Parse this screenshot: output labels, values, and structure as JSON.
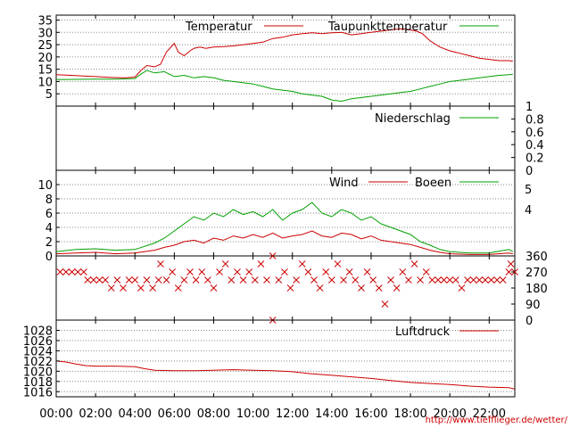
{
  "chart_data": [
    {
      "type": "line",
      "panel": "temperature",
      "ylim": [
        0,
        37
      ],
      "yticks": [
        5,
        10,
        15,
        20,
        25,
        30,
        35
      ],
      "grid": true,
      "legend_position": "top",
      "series": [
        {
          "name": "Temperatur",
          "color": "#cc0000",
          "x": [
            0,
            0.5,
            1,
            1.5,
            2,
            2.5,
            3,
            3.5,
            4,
            4.3,
            4.6,
            5,
            5.3,
            5.6,
            6,
            6.2,
            6.5,
            6.8,
            7,
            7.3,
            7.6,
            8,
            8.5,
            9,
            9.5,
            10,
            10.5,
            11,
            11.5,
            12,
            12.5,
            13,
            13.5,
            14,
            14.5,
            15,
            15.5,
            16,
            16.5,
            17,
            17.5,
            18,
            18.3,
            18.6,
            19,
            19.5,
            20,
            20.5,
            21,
            21.5,
            22,
            22.5,
            23,
            23.2
          ],
          "values": [
            12.8,
            12.6,
            12.4,
            12.2,
            12.0,
            11.8,
            11.6,
            11.5,
            11.8,
            14.5,
            16.5,
            16.0,
            17.0,
            22.0,
            25.5,
            22.0,
            20.5,
            22.5,
            23.5,
            24.0,
            23.5,
            24.0,
            24.2,
            24.5,
            25.0,
            25.5,
            26.0,
            27.5,
            28.0,
            29.0,
            29.5,
            29.8,
            29.5,
            29.8,
            30.0,
            29.0,
            29.5,
            30.0,
            30.5,
            31.0,
            31.5,
            31.0,
            30.5,
            29.5,
            26.5,
            24.0,
            22.5,
            21.5,
            20.5,
            19.5,
            19.0,
            18.5,
            18.5,
            18.3
          ]
        },
        {
          "name": "Taupunkttemperatur",
          "color": "#00a000",
          "x": [
            0,
            1,
            2,
            3,
            4,
            4.3,
            4.6,
            5,
            5.5,
            6,
            6.5,
            7,
            7.5,
            8,
            8.5,
            9,
            9.5,
            10,
            10.5,
            11,
            11.5,
            12,
            12.5,
            13,
            13.5,
            14,
            14.5,
            15,
            15.5,
            16,
            16.5,
            17,
            17.5,
            18,
            18.5,
            19,
            19.5,
            20,
            20.5,
            21,
            21.5,
            22,
            22.5,
            23,
            23.2
          ],
          "values": [
            10.8,
            10.9,
            11.0,
            11.0,
            11.2,
            13.0,
            14.5,
            13.5,
            14.0,
            12.0,
            12.5,
            11.5,
            12.0,
            11.5,
            10.5,
            10.0,
            9.5,
            9.0,
            8.0,
            7.0,
            6.5,
            6.0,
            5.0,
            4.5,
            4.0,
            2.5,
            2.0,
            3.0,
            3.5,
            4.0,
            4.5,
            5.0,
            5.5,
            6.0,
            7.0,
            8.0,
            9.0,
            10.0,
            10.5,
            11.0,
            11.5,
            12.0,
            12.5,
            12.8,
            13.0
          ]
        }
      ]
    },
    {
      "type": "line",
      "panel": "precipitation",
      "ylim": [
        0,
        1
      ],
      "yticks": [
        "0",
        "0.2",
        "0.4",
        "0.6",
        "0.8",
        "1"
      ],
      "axis_side": "right",
      "series": [
        {
          "name": "Niederschlag",
          "color": "#00a000",
          "x": [
            0,
            23.3
          ],
          "values": [
            0,
            0
          ]
        }
      ]
    },
    {
      "type": "line",
      "panel": "wind",
      "ylim": [
        0,
        12
      ],
      "yticks": [
        0,
        2,
        4,
        6,
        8,
        10
      ],
      "right_ticks": [
        "5",
        "4"
      ],
      "grid": true,
      "series": [
        {
          "name": "Wind",
          "color": "#cc0000",
          "x": [
            0,
            1,
            2,
            3,
            4,
            5,
            5.5,
            6,
            6.5,
            7,
            7.5,
            8,
            8.5,
            9,
            9.5,
            10,
            10.5,
            11,
            11.5,
            12,
            12.5,
            13,
            13.5,
            14,
            14.5,
            15,
            15.5,
            16,
            16.5,
            17,
            17.5,
            18,
            18.5,
            19,
            19.5,
            20,
            21,
            22,
            23,
            23.2
          ],
          "values": [
            0.3,
            0.4,
            0.5,
            0.3,
            0.4,
            0.8,
            1.2,
            1.5,
            2.0,
            2.2,
            1.8,
            2.5,
            2.2,
            2.8,
            2.5,
            3.0,
            2.6,
            3.2,
            2.5,
            2.8,
            3.0,
            3.5,
            2.8,
            2.6,
            3.2,
            3.0,
            2.4,
            2.8,
            2.2,
            2.0,
            1.8,
            1.6,
            1.2,
            0.8,
            0.5,
            0.3,
            0.2,
            0.2,
            0.4,
            0.3
          ]
        },
        {
          "name": "Boeen",
          "color": "#00a000",
          "x": [
            0,
            1,
            2,
            3,
            4,
            5,
            5.5,
            6,
            6.5,
            7,
            7.5,
            8,
            8.5,
            9,
            9.5,
            10,
            10.5,
            11,
            11.5,
            12,
            12.5,
            13,
            13.5,
            14,
            14.5,
            15,
            15.5,
            16,
            16.5,
            17,
            17.5,
            18,
            18.5,
            19,
            19.5,
            20,
            21,
            22,
            23,
            23.2
          ],
          "values": [
            0.6,
            0.9,
            1.0,
            0.8,
            0.9,
            1.8,
            2.5,
            3.5,
            4.5,
            5.5,
            5.0,
            6.0,
            5.5,
            6.5,
            5.8,
            6.2,
            5.5,
            6.5,
            5.0,
            6.0,
            6.5,
            7.5,
            6.0,
            5.5,
            6.5,
            6.0,
            5.0,
            5.5,
            4.5,
            4.0,
            3.5,
            3.0,
            2.0,
            1.5,
            0.9,
            0.6,
            0.4,
            0.4,
            0.9,
            0.6
          ]
        }
      ]
    },
    {
      "type": "scatter",
      "panel": "wind_direction",
      "ylim": [
        0,
        360
      ],
      "yticks": [
        "0",
        "90",
        "180",
        "270",
        "360"
      ],
      "axis_side": "right",
      "marker": "x",
      "color": "#cc0000",
      "points": [
        [
          0.2,
          270
        ],
        [
          0.5,
          270
        ],
        [
          0.8,
          270
        ],
        [
          1.1,
          270
        ],
        [
          1.4,
          270
        ],
        [
          1.6,
          225
        ],
        [
          1.9,
          225
        ],
        [
          2.2,
          225
        ],
        [
          2.5,
          225
        ],
        [
          2.8,
          180
        ],
        [
          3.1,
          225
        ],
        [
          3.4,
          180
        ],
        [
          3.7,
          225
        ],
        [
          4.0,
          225
        ],
        [
          4.3,
          180
        ],
        [
          4.6,
          225
        ],
        [
          4.9,
          180
        ],
        [
          5.2,
          225
        ],
        [
          5.3,
          315
        ],
        [
          5.6,
          225
        ],
        [
          5.9,
          270
        ],
        [
          6.2,
          180
        ],
        [
          6.5,
          225
        ],
        [
          6.8,
          270
        ],
        [
          7.1,
          225
        ],
        [
          7.4,
          270
        ],
        [
          7.7,
          225
        ],
        [
          8.0,
          180
        ],
        [
          8.3,
          270
        ],
        [
          8.6,
          315
        ],
        [
          8.9,
          225
        ],
        [
          9.2,
          270
        ],
        [
          9.5,
          225
        ],
        [
          9.8,
          270
        ],
        [
          10.1,
          225
        ],
        [
          10.4,
          315
        ],
        [
          10.7,
          225
        ],
        [
          11.0,
          0
        ],
        [
          11.0,
          360
        ],
        [
          11.3,
          225
        ],
        [
          11.6,
          270
        ],
        [
          11.9,
          180
        ],
        [
          12.2,
          225
        ],
        [
          12.5,
          315
        ],
        [
          12.8,
          270
        ],
        [
          13.1,
          225
        ],
        [
          13.4,
          180
        ],
        [
          13.7,
          270
        ],
        [
          14.0,
          225
        ],
        [
          14.3,
          315
        ],
        [
          14.6,
          225
        ],
        [
          14.9,
          270
        ],
        [
          15.2,
          225
        ],
        [
          15.5,
          180
        ],
        [
          15.8,
          270
        ],
        [
          16.1,
          225
        ],
        [
          16.4,
          180
        ],
        [
          16.7,
          90
        ],
        [
          17.0,
          225
        ],
        [
          17.3,
          180
        ],
        [
          17.6,
          270
        ],
        [
          17.9,
          225
        ],
        [
          18.2,
          315
        ],
        [
          18.5,
          225
        ],
        [
          18.8,
          270
        ],
        [
          19.1,
          225
        ],
        [
          19.4,
          225
        ],
        [
          19.7,
          225
        ],
        [
          20.0,
          225
        ],
        [
          20.3,
          225
        ],
        [
          20.6,
          180
        ],
        [
          20.9,
          225
        ],
        [
          21.2,
          225
        ],
        [
          21.5,
          225
        ],
        [
          21.8,
          225
        ],
        [
          22.1,
          225
        ],
        [
          22.4,
          225
        ],
        [
          22.7,
          225
        ],
        [
          23.0,
          270
        ],
        [
          23.1,
          315
        ],
        [
          23.3,
          270
        ]
      ]
    },
    {
      "type": "line",
      "panel": "pressure",
      "ylim": [
        1015,
        1030
      ],
      "yticks": [
        1016,
        1018,
        1020,
        1022,
        1024,
        1026,
        1028
      ],
      "grid": true,
      "series": [
        {
          "name": "Luftdruck",
          "color": "#cc0000",
          "x": [
            0,
            0.5,
            1,
            1.5,
            2,
            3,
            4,
            4.5,
            5,
            6,
            7,
            8,
            9,
            10,
            11,
            12,
            13,
            14,
            15,
            16,
            17,
            18,
            19,
            20,
            21,
            22,
            23,
            23.3
          ],
          "values": [
            1022.0,
            1021.8,
            1021.4,
            1021.1,
            1021.0,
            1021.0,
            1020.9,
            1020.5,
            1020.2,
            1020.1,
            1020.1,
            1020.2,
            1020.3,
            1020.2,
            1020.1,
            1019.9,
            1019.5,
            1019.2,
            1018.9,
            1018.6,
            1018.2,
            1017.8,
            1017.6,
            1017.4,
            1017.1,
            1016.9,
            1016.8,
            1016.5
          ]
        }
      ]
    }
  ],
  "x_axis": {
    "labels": [
      "00:00",
      "02:00",
      "04:00",
      "06:00",
      "08:00",
      "10:00",
      "12:00",
      "14:00",
      "16:00",
      "18:00",
      "20:00",
      "22:00"
    ],
    "label_hours": [
      0,
      2,
      4,
      6,
      8,
      10,
      12,
      14,
      16,
      18,
      20,
      22
    ],
    "range": [
      0,
      23.3
    ]
  },
  "source_url": "http://www.tiefflieger.de/wetter/"
}
